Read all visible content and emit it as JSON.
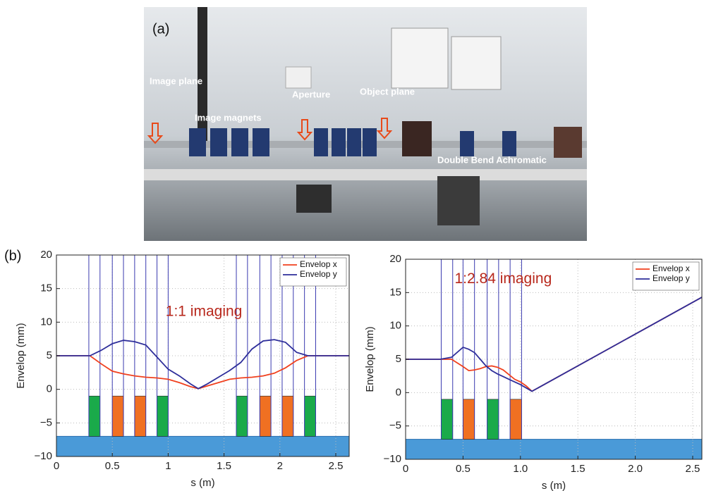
{
  "panel_labels": {
    "a": "(a)",
    "b": "(b)"
  },
  "photo": {
    "labels": [
      "Image plane",
      "Image magnets",
      "Aperture",
      "Object plane",
      "Double Bend Achromatic"
    ]
  },
  "chart_data": [
    {
      "type": "line",
      "annotation": "1:1 imaging",
      "annotation_color": "#b8281c",
      "annotation_at": [
        1.32,
        11.5
      ],
      "xlabel": "s (m)",
      "ylabel": "Envelop (mm)",
      "x": [
        0,
        0.3,
        0.4,
        0.5,
        0.6,
        0.7,
        0.8,
        0.9,
        1.0,
        1.1,
        1.2,
        1.27,
        1.35,
        1.45,
        1.55,
        1.65,
        1.75,
        1.85,
        1.95,
        2.05,
        2.15,
        2.25,
        2.35,
        2.62
      ],
      "series": [
        {
          "name": "Envelop x",
          "color": "#f0401e",
          "values": [
            5,
            5,
            3.8,
            2.7,
            2.3,
            2.0,
            1.8,
            1.7,
            1.5,
            1.0,
            0.4,
            0.1,
            0.5,
            1.0,
            1.5,
            1.7,
            1.8,
            2.0,
            2.4,
            3.2,
            4.3,
            5,
            5,
            5
          ]
        },
        {
          "name": "Envelop y",
          "color": "#2e2e9a",
          "values": [
            5,
            5,
            5.8,
            6.8,
            7.3,
            7.1,
            6.6,
            4.8,
            3.0,
            2.0,
            0.8,
            0.1,
            0.8,
            1.8,
            2.8,
            4.0,
            6.0,
            7.2,
            7.4,
            7.0,
            5.5,
            5,
            5,
            5
          ]
        }
      ],
      "magnets": [
        {
          "s": [
            0.29,
            0.39
          ],
          "color": "#1aaa4a"
        },
        {
          "s": [
            0.5,
            0.6
          ],
          "color": "#f07022"
        },
        {
          "s": [
            0.7,
            0.8
          ],
          "color": "#f07022"
        },
        {
          "s": [
            0.9,
            1.0
          ],
          "color": "#1aaa4a"
        },
        {
          "s": [
            1.61,
            1.71
          ],
          "color": "#1aaa4a"
        },
        {
          "s": [
            1.82,
            1.92
          ],
          "color": "#f07022"
        },
        {
          "s": [
            2.02,
            2.12
          ],
          "color": "#f07022"
        },
        {
          "s": [
            2.22,
            2.32
          ],
          "color": "#1aaa4a"
        }
      ],
      "magnet_range": [
        -7,
        -1
      ],
      "floor_range": [
        -10,
        -7
      ],
      "floor_color": "#4a9ad8",
      "edge_color": "#3a3ab0",
      "xlim": [
        0,
        2.62
      ],
      "ylim": [
        -10,
        20
      ],
      "xticks": [
        0,
        0.5,
        1,
        1.5,
        2,
        2.5
      ],
      "yticks": [
        {
          "value": -10,
          "label": "−10"
        },
        {
          "value": -5,
          "label": "−5"
        },
        0,
        5,
        10,
        15,
        20
      ],
      "grid": true,
      "legend": "upper right"
    },
    {
      "type": "line",
      "annotation": "1:2.84 imaging",
      "annotation_color": "#b8281c",
      "annotation_at": [
        0.85,
        17
      ],
      "xlabel": "s (m)",
      "ylabel": "Envelop (mm)",
      "x": [
        0,
        0.3,
        0.4,
        0.5,
        0.55,
        0.6,
        0.65,
        0.7,
        0.75,
        0.8,
        0.85,
        0.9,
        0.95,
        1.0,
        1.05,
        1.1,
        2.58
      ],
      "series": [
        {
          "name": "Envelop x",
          "color": "#f0401e",
          "values": [
            5,
            5,
            5,
            3.9,
            3.3,
            3.4,
            3.6,
            3.9,
            4.0,
            3.8,
            3.4,
            2.7,
            2.0,
            1.6,
            1.0,
            0.2,
            14.3
          ]
        },
        {
          "name": "Envelop y",
          "color": "#2e2e9a",
          "values": [
            5,
            5,
            5.3,
            6.8,
            6.5,
            6.0,
            5.0,
            4.0,
            3.3,
            2.8,
            2.4,
            2.0,
            1.6,
            1.2,
            0.7,
            0.2,
            14.3
          ]
        }
      ],
      "magnets": [
        {
          "s": [
            0.31,
            0.41
          ],
          "color": "#1aaa4a"
        },
        {
          "s": [
            0.5,
            0.6
          ],
          "color": "#f07022"
        },
        {
          "s": [
            0.71,
            0.81
          ],
          "color": "#1aaa4a"
        },
        {
          "s": [
            0.91,
            1.01
          ],
          "color": "#f07022"
        }
      ],
      "magnet_range": [
        -7,
        -1
      ],
      "floor_range": [
        -10,
        -7
      ],
      "floor_color": "#4a9ad8",
      "edge_color": "#3a3ab0",
      "xlim": [
        0,
        2.58
      ],
      "ylim": [
        -10,
        20
      ],
      "xticks": [
        0,
        0.5,
        {
          "value": 1,
          "label": "1.0"
        },
        1.5,
        {
          "value": 2,
          "label": "2.0"
        },
        2.5
      ],
      "yticks": [
        {
          "value": -10,
          "label": "−10"
        },
        {
          "value": -5,
          "label": "−5"
        },
        0,
        5,
        10,
        15,
        20
      ],
      "grid": true,
      "legend": "upper right"
    }
  ]
}
